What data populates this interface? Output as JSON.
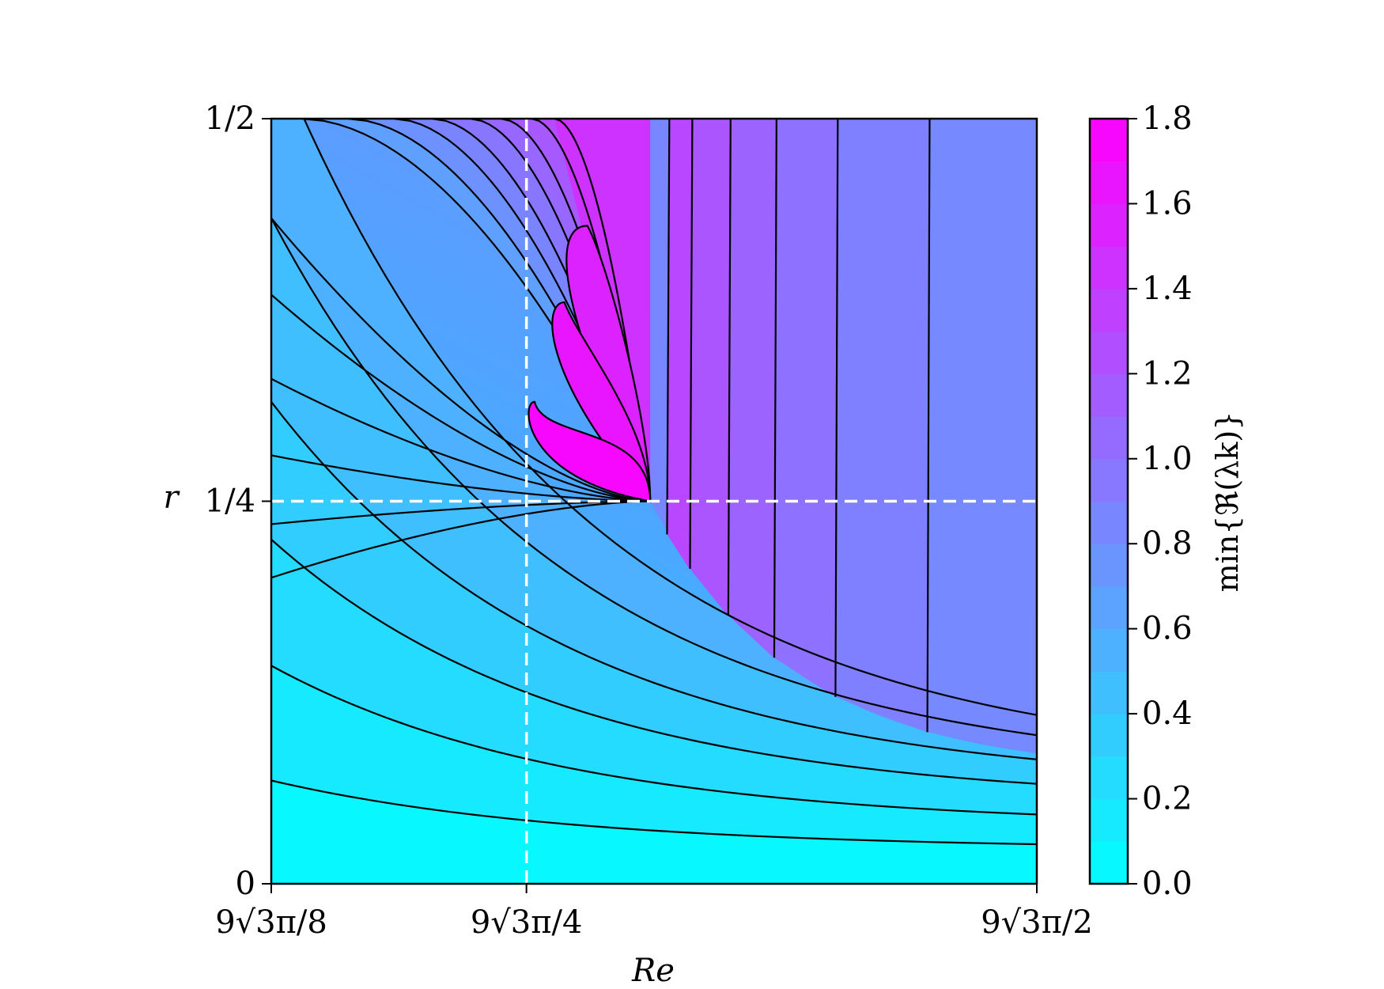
{
  "chart_data": {
    "type": "contour",
    "title": "",
    "xlabel": "Re",
    "ylabel": "r",
    "x_tick_labels": [
      "9√3π/8",
      "9√3π/4",
      "9√3π/2"
    ],
    "y_tick_labels": [
      "0",
      "1/4",
      "1/2"
    ],
    "x_range": [
      2.756,
      11.024
    ],
    "y_range": [
      0,
      0.5
    ],
    "reference_lines": [
      {
        "orientation": "vertical",
        "at": 5.512,
        "style": "white dashed"
      },
      {
        "orientation": "horizontal",
        "at": 0.25,
        "style": "white dashed"
      }
    ],
    "colorbar": {
      "label": "min{ℜ(λk)}",
      "range": [
        0,
        1.8
      ],
      "tick_labels": [
        "0.0",
        "0.2",
        "0.4",
        "0.6",
        "0.8",
        "1.0",
        "1.2",
        "1.4",
        "1.6",
        "1.8"
      ],
      "level_step": 0.1,
      "colormap": "cool",
      "color_low": "#00ffff",
      "color_high": "#ff00ff"
    },
    "peak_value": 1.8,
    "grid": false
  }
}
